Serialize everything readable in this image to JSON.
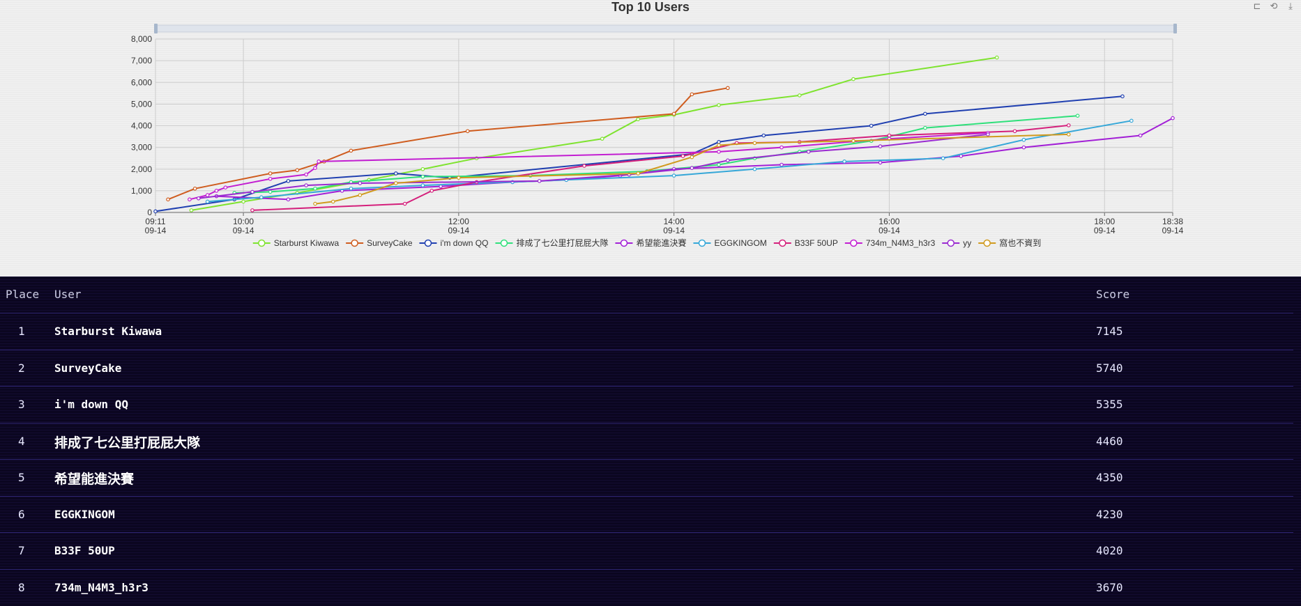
{
  "toolbox": {
    "zoom_icon": "data-zoom-icon",
    "reset_icon": "reset-icon",
    "save_icon": "save-image-icon"
  },
  "chart_data": {
    "type": "line",
    "title": "Top 10 Users",
    "xlabel": "",
    "ylabel": "",
    "ylim": [
      0,
      8000
    ],
    "yticks": [
      "0",
      "1,000",
      "2,000",
      "3,000",
      "4,000",
      "5,000",
      "6,000",
      "7,000",
      "8,000"
    ],
    "xlim": [
      "09-14 09:11",
      "09-14 18:38"
    ],
    "xticks": [
      {
        "time": "09:11",
        "date": "09-14"
      },
      {
        "time": "10:00",
        "date": "09-14"
      },
      {
        "time": "12:00",
        "date": "09-14"
      },
      {
        "time": "14:00",
        "date": "09-14"
      },
      {
        "time": "16:00",
        "date": "09-14"
      },
      {
        "time": "18:00",
        "date": "09-14"
      },
      {
        "time": "18:38",
        "date": "09-14"
      }
    ],
    "grid": true,
    "legend_position": "bottom",
    "series": [
      {
        "name": "Starburst Kiwawa",
        "color": "#7ee32e",
        "points": [
          [
            "09:31",
            100
          ],
          [
            "10:00",
            500
          ],
          [
            "10:30",
            900
          ],
          [
            "11:10",
            1500
          ],
          [
            "11:40",
            2000
          ],
          [
            "12:10",
            2500
          ],
          [
            "13:20",
            3400
          ],
          [
            "13:40",
            4300
          ],
          [
            "14:00",
            4500
          ],
          [
            "14:25",
            4950
          ],
          [
            "15:10",
            5400
          ],
          [
            "15:40",
            6150
          ],
          [
            "17:00",
            7145
          ]
        ]
      },
      {
        "name": "SurveyCake",
        "color": "#cf5c1e",
        "points": [
          [
            "09:18",
            600
          ],
          [
            "09:33",
            1100
          ],
          [
            "10:15",
            1800
          ],
          [
            "10:30",
            1950
          ],
          [
            "10:45",
            2350
          ],
          [
            "11:00",
            2850
          ],
          [
            "12:05",
            3750
          ],
          [
            "14:00",
            4550
          ],
          [
            "14:10",
            5450
          ],
          [
            "14:30",
            5740
          ]
        ]
      },
      {
        "name": "i'm down QQ",
        "color": "#1f3fb0",
        "points": [
          [
            "09:11",
            50
          ],
          [
            "09:55",
            600
          ],
          [
            "10:25",
            1450
          ],
          [
            "11:25",
            1800
          ],
          [
            "11:55",
            1600
          ],
          [
            "14:10",
            2700
          ],
          [
            "14:25",
            3250
          ],
          [
            "14:50",
            3550
          ],
          [
            "15:50",
            4000
          ],
          [
            "16:20",
            4550
          ],
          [
            "18:10",
            5355
          ]
        ]
      },
      {
        "name": "排成了七公里打屁屁大隊",
        "color": "#2ee07a",
        "points": [
          [
            "09:55",
            900
          ],
          [
            "10:15",
            950
          ],
          [
            "10:40",
            1100
          ],
          [
            "11:00",
            1400
          ],
          [
            "11:40",
            1650
          ],
          [
            "12:40",
            1700
          ],
          [
            "13:45",
            1900
          ],
          [
            "14:25",
            2200
          ],
          [
            "14:45",
            2500
          ],
          [
            "15:10",
            2800
          ],
          [
            "15:50",
            3300
          ],
          [
            "16:20",
            3900
          ],
          [
            "17:45",
            4460
          ]
        ]
      },
      {
        "name": "希望能進決賽",
        "color": "#a21fd6",
        "points": [
          [
            "09:45",
            750
          ],
          [
            "10:25",
            600
          ],
          [
            "10:55",
            1000
          ],
          [
            "11:50",
            1200
          ],
          [
            "12:30",
            1400
          ],
          [
            "13:00",
            1500
          ],
          [
            "13:30",
            1700
          ],
          [
            "14:00",
            2000
          ],
          [
            "15:00",
            2200
          ],
          [
            "15:55",
            2300
          ],
          [
            "16:40",
            2600
          ],
          [
            "17:15",
            3000
          ],
          [
            "18:20",
            3550
          ],
          [
            "18:38",
            4350
          ]
        ]
      },
      {
        "name": "EGGKINGOM",
        "color": "#35a7d8",
        "points": [
          [
            "09:40",
            500
          ],
          [
            "10:10",
            700
          ],
          [
            "11:00",
            1100
          ],
          [
            "11:40",
            1250
          ],
          [
            "12:30",
            1400
          ],
          [
            "13:00",
            1500
          ],
          [
            "14:00",
            1700
          ],
          [
            "14:45",
            2000
          ],
          [
            "15:35",
            2350
          ],
          [
            "16:30",
            2500
          ],
          [
            "17:15",
            3350
          ],
          [
            "18:15",
            4230
          ]
        ]
      },
      {
        "name": "B33F 50UP",
        "color": "#d41f7b",
        "points": [
          [
            "10:05",
            100
          ],
          [
            "11:30",
            400
          ],
          [
            "11:45",
            1000
          ],
          [
            "12:10",
            1400
          ],
          [
            "13:10",
            2150
          ],
          [
            "14:05",
            2600
          ],
          [
            "14:35",
            3200
          ],
          [
            "15:10",
            3250
          ],
          [
            "16:00",
            3550
          ],
          [
            "17:10",
            3750
          ],
          [
            "17:40",
            4020
          ]
        ]
      },
      {
        "name": "734m_N4M3_h3r3",
        "color": "#c21dd1",
        "points": [
          [
            "09:30",
            600
          ],
          [
            "09:40",
            800
          ],
          [
            "09:45",
            1000
          ],
          [
            "09:50",
            1150
          ],
          [
            "10:15",
            1550
          ],
          [
            "10:35",
            1750
          ],
          [
            "10:40",
            2050
          ],
          [
            "10:42",
            2350
          ],
          [
            "14:25",
            2800
          ],
          [
            "15:00",
            3000
          ],
          [
            "16:00",
            3400
          ],
          [
            "16:55",
            3670
          ]
        ]
      },
      {
        "name": "yy",
        "color": "#9a2ad0",
        "points": [
          [
            "09:35",
            650
          ],
          [
            "10:05",
            950
          ],
          [
            "10:35",
            1250
          ],
          [
            "11:05",
            1350
          ],
          [
            "12:45",
            1450
          ],
          [
            "13:35",
            1750
          ],
          [
            "14:10",
            2050
          ],
          [
            "14:30",
            2400
          ],
          [
            "15:15",
            2800
          ],
          [
            "15:55",
            3050
          ],
          [
            "16:55",
            3600
          ]
        ]
      },
      {
        "name": "窩也不資到",
        "color": "#d09a1e",
        "points": [
          [
            "10:40",
            400
          ],
          [
            "10:50",
            500
          ],
          [
            "11:05",
            800
          ],
          [
            "11:25",
            1350
          ],
          [
            "12:00",
            1600
          ],
          [
            "13:40",
            1800
          ],
          [
            "14:10",
            2550
          ],
          [
            "14:25",
            3100
          ],
          [
            "14:45",
            3200
          ],
          [
            "15:40",
            3300
          ],
          [
            "17:40",
            3600
          ]
        ]
      }
    ]
  },
  "board": {
    "headers": {
      "place": "Place",
      "user": "User",
      "score": "Score"
    },
    "rows": [
      {
        "place": "1",
        "user": "Starburst Kiwawa",
        "score": "7145"
      },
      {
        "place": "2",
        "user": "SurveyCake",
        "score": "5740"
      },
      {
        "place": "3",
        "user": "i'm down QQ",
        "score": "5355"
      },
      {
        "place": "4",
        "user": "排成了七公里打屁屁大隊",
        "score": "4460"
      },
      {
        "place": "5",
        "user": "希望能進決賽",
        "score": "4350"
      },
      {
        "place": "6",
        "user": "EGGKINGOM",
        "score": "4230"
      },
      {
        "place": "7",
        "user": "B33F 50UP",
        "score": "4020"
      },
      {
        "place": "8",
        "user": "734m_N4M3_h3r3",
        "score": "3670"
      }
    ]
  }
}
